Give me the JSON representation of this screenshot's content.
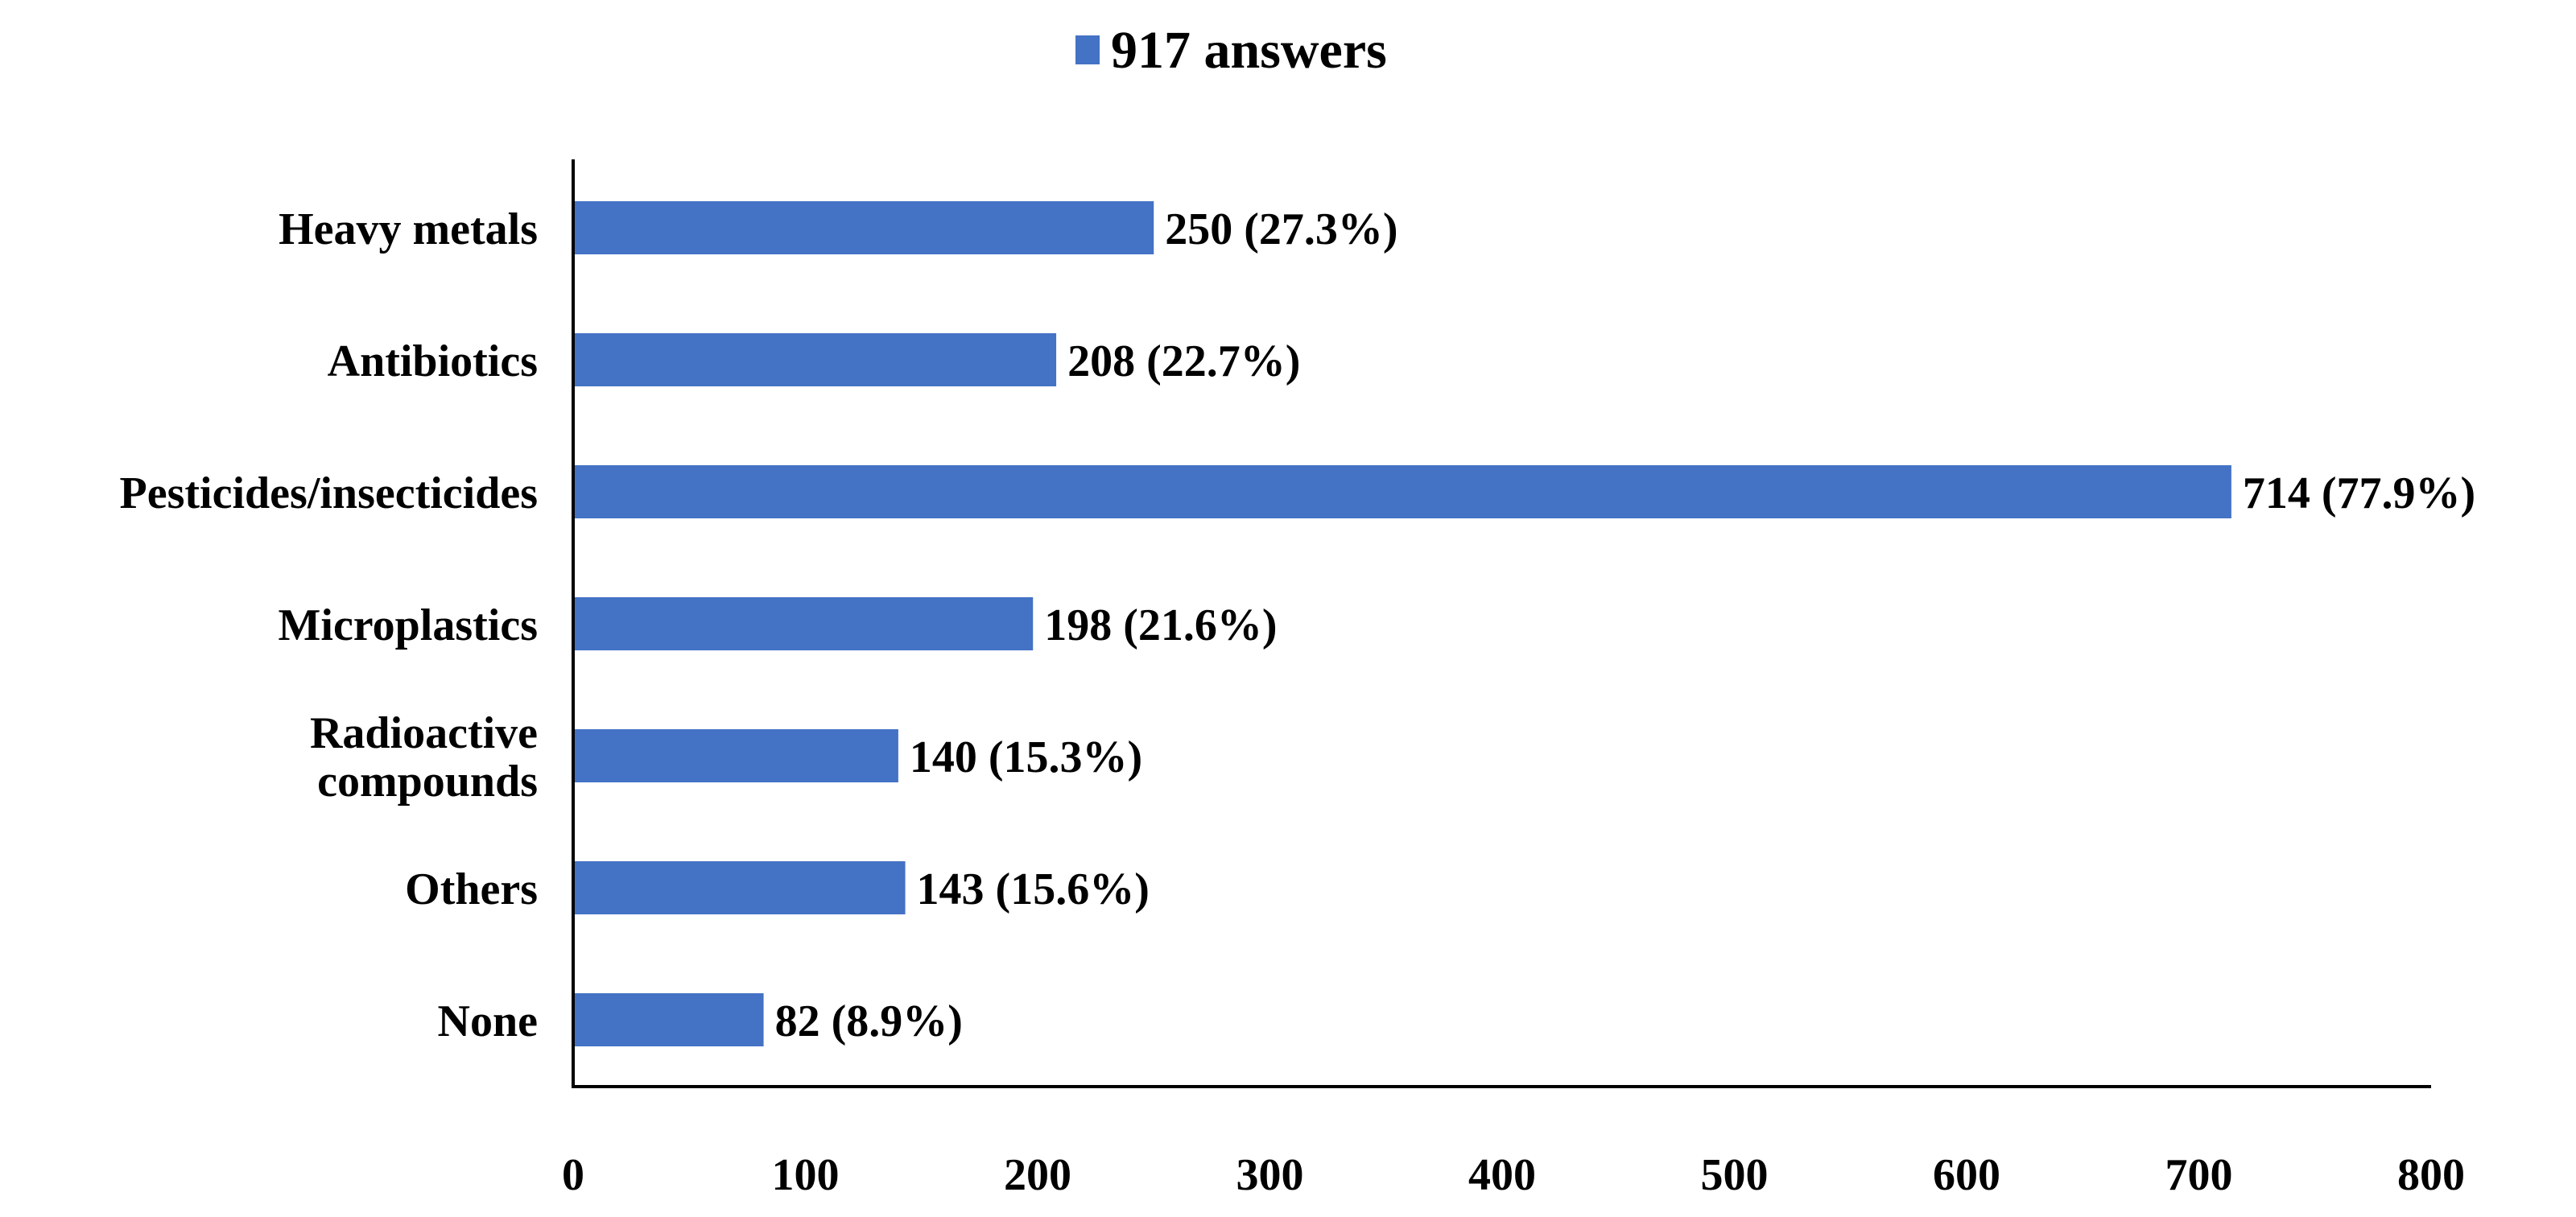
{
  "chart_data": {
    "type": "bar",
    "orientation": "horizontal",
    "categories": [
      "Heavy metals",
      "Antibiotics",
      "Pesticides/insecticides",
      "Microplastics",
      "Radioactive compounds",
      "Others",
      "None"
    ],
    "category_lines": [
      [
        "Heavy metals"
      ],
      [
        "Antibiotics"
      ],
      [
        "Pesticides/insecticides"
      ],
      [
        "Microplastics"
      ],
      [
        "Radioactive",
        "compounds"
      ],
      [
        "Others"
      ],
      [
        "None"
      ]
    ],
    "series": [
      {
        "name": "917 answers",
        "values": [
          250,
          208,
          714,
          198,
          140,
          143,
          82
        ],
        "labels": [
          "250 (27.3%)",
          "208 (22.7%)",
          "714 (77.9%)",
          "198 (21.6%)",
          "140 (15.3%)",
          "143 (15.6%)",
          "82 (8.9%)"
        ]
      }
    ],
    "xlim": [
      0,
      800
    ],
    "xticks": [
      "0",
      "100",
      "200",
      "300",
      "400",
      "500",
      "600",
      "700",
      "800"
    ],
    "legend_position": "top-center",
    "grid": false,
    "bar_color": "#4472C4"
  }
}
